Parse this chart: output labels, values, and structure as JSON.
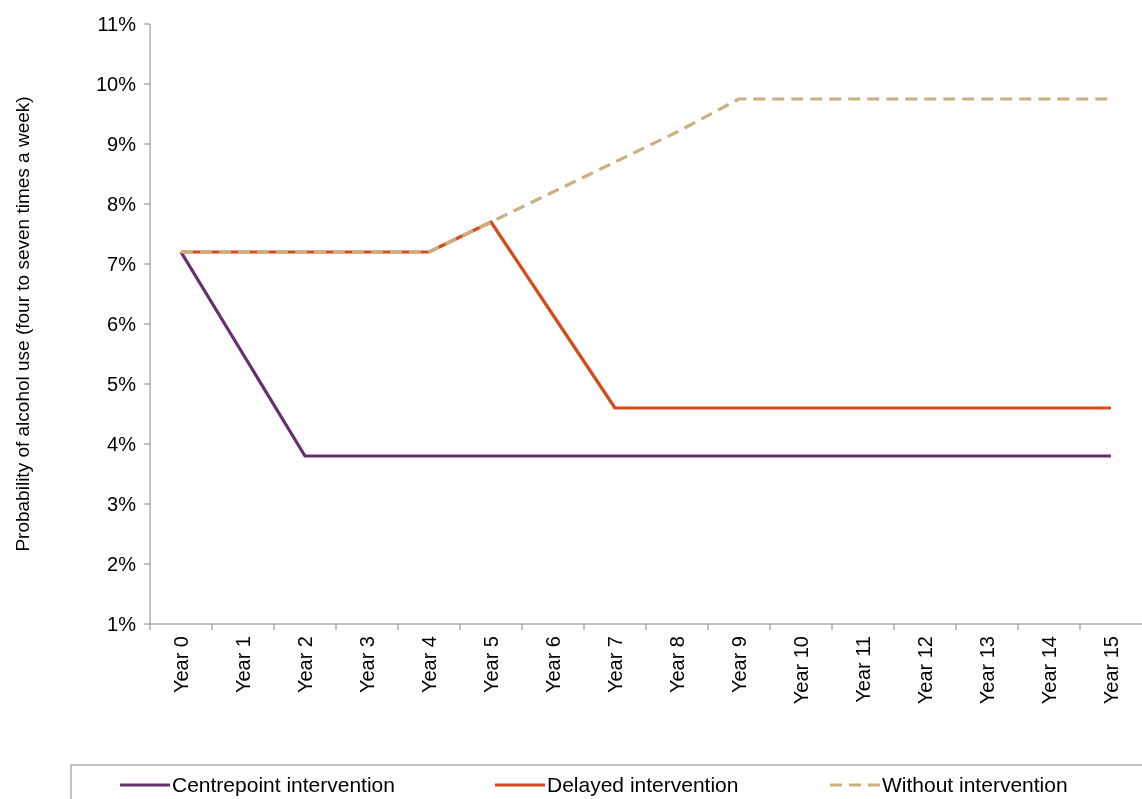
{
  "chart_data": {
    "type": "line",
    "ylabel": "Probability of alcohol use (four to seven times a week)",
    "categories": [
      "Year 0",
      "Year 1",
      "Year 2",
      "Year 3",
      "Year 4",
      "Year 5",
      "Year 6",
      "Year 7",
      "Year 8",
      "Year 9",
      "Year 10",
      "Year 11",
      "Year 12",
      "Year 13",
      "Year 14",
      "Year 15"
    ],
    "series": [
      {
        "name": "Centrepoint intervention",
        "color": "#66306e",
        "line_style": "solid",
        "values": [
          7.2,
          5.5,
          3.8,
          3.8,
          3.8,
          3.8,
          3.8,
          3.8,
          3.8,
          3.8,
          3.8,
          3.8,
          3.8,
          3.8,
          3.8,
          3.8
        ]
      },
      {
        "name": "Delayed intervention",
        "color": "#d6491b",
        "line_style": "solid",
        "values": [
          7.2,
          7.2,
          7.2,
          7.2,
          7.2,
          7.7,
          6.15,
          4.6,
          4.6,
          4.6,
          4.6,
          4.6,
          4.6,
          4.6,
          4.6,
          4.6
        ]
      },
      {
        "name": "Without intervention",
        "color": "#c9b07e",
        "line_style": "dashed",
        "values": [
          7.2,
          7.2,
          7.2,
          7.2,
          7.2,
          7.7,
          8.2,
          8.7,
          9.2,
          9.75,
          9.75,
          9.75,
          9.75,
          9.75,
          9.75,
          9.75
        ]
      }
    ],
    "ylim": [
      1,
      11
    ],
    "yticks": [
      {
        "value": 1,
        "label": "1%"
      },
      {
        "value": 2,
        "label": "2%"
      },
      {
        "value": 3,
        "label": "3%"
      },
      {
        "value": 4,
        "label": "4%"
      },
      {
        "value": 5,
        "label": "5%"
      },
      {
        "value": 6,
        "label": "6%"
      },
      {
        "value": 7,
        "label": "7%"
      },
      {
        "value": 8,
        "label": "8%"
      },
      {
        "value": 9,
        "label": "9%"
      },
      {
        "value": 10,
        "label": "10%"
      },
      {
        "value": 11,
        "label": "11%"
      }
    ],
    "grid": false,
    "legend": "bottom"
  }
}
